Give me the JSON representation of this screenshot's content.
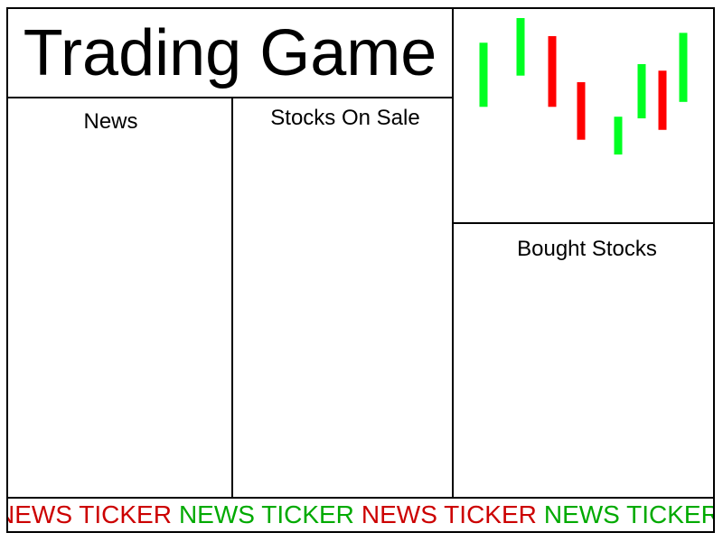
{
  "title": "Trading Game",
  "panels": {
    "news": "News",
    "stocks_on_sale": "Stocks On Sale",
    "bought_stocks": "Bought Stocks"
  },
  "ticker": {
    "text": "NEWS TICKER",
    "colors": [
      "#cc0000",
      "#00aa00"
    ],
    "repeat": 5
  },
  "colors": {
    "up": "#00ff22",
    "down": "#ff0000"
  },
  "chart_data": {
    "type": "candlestick",
    "grid": false,
    "candles": [
      {
        "direction": "up",
        "low": 0.46,
        "high": 0.85
      },
      {
        "direction": "up",
        "low": 0.65,
        "high": 1.0
      },
      {
        "direction": "down",
        "low": 0.46,
        "high": 0.89
      },
      {
        "direction": "down",
        "low": 0.26,
        "high": 0.61
      },
      {
        "direction": "up",
        "low": 0.17,
        "high": 0.4
      },
      {
        "direction": "up",
        "low": 0.39,
        "high": 0.72
      },
      {
        "direction": "down",
        "low": 0.32,
        "high": 0.68
      },
      {
        "direction": "up",
        "low": 0.49,
        "high": 0.91
      }
    ]
  }
}
